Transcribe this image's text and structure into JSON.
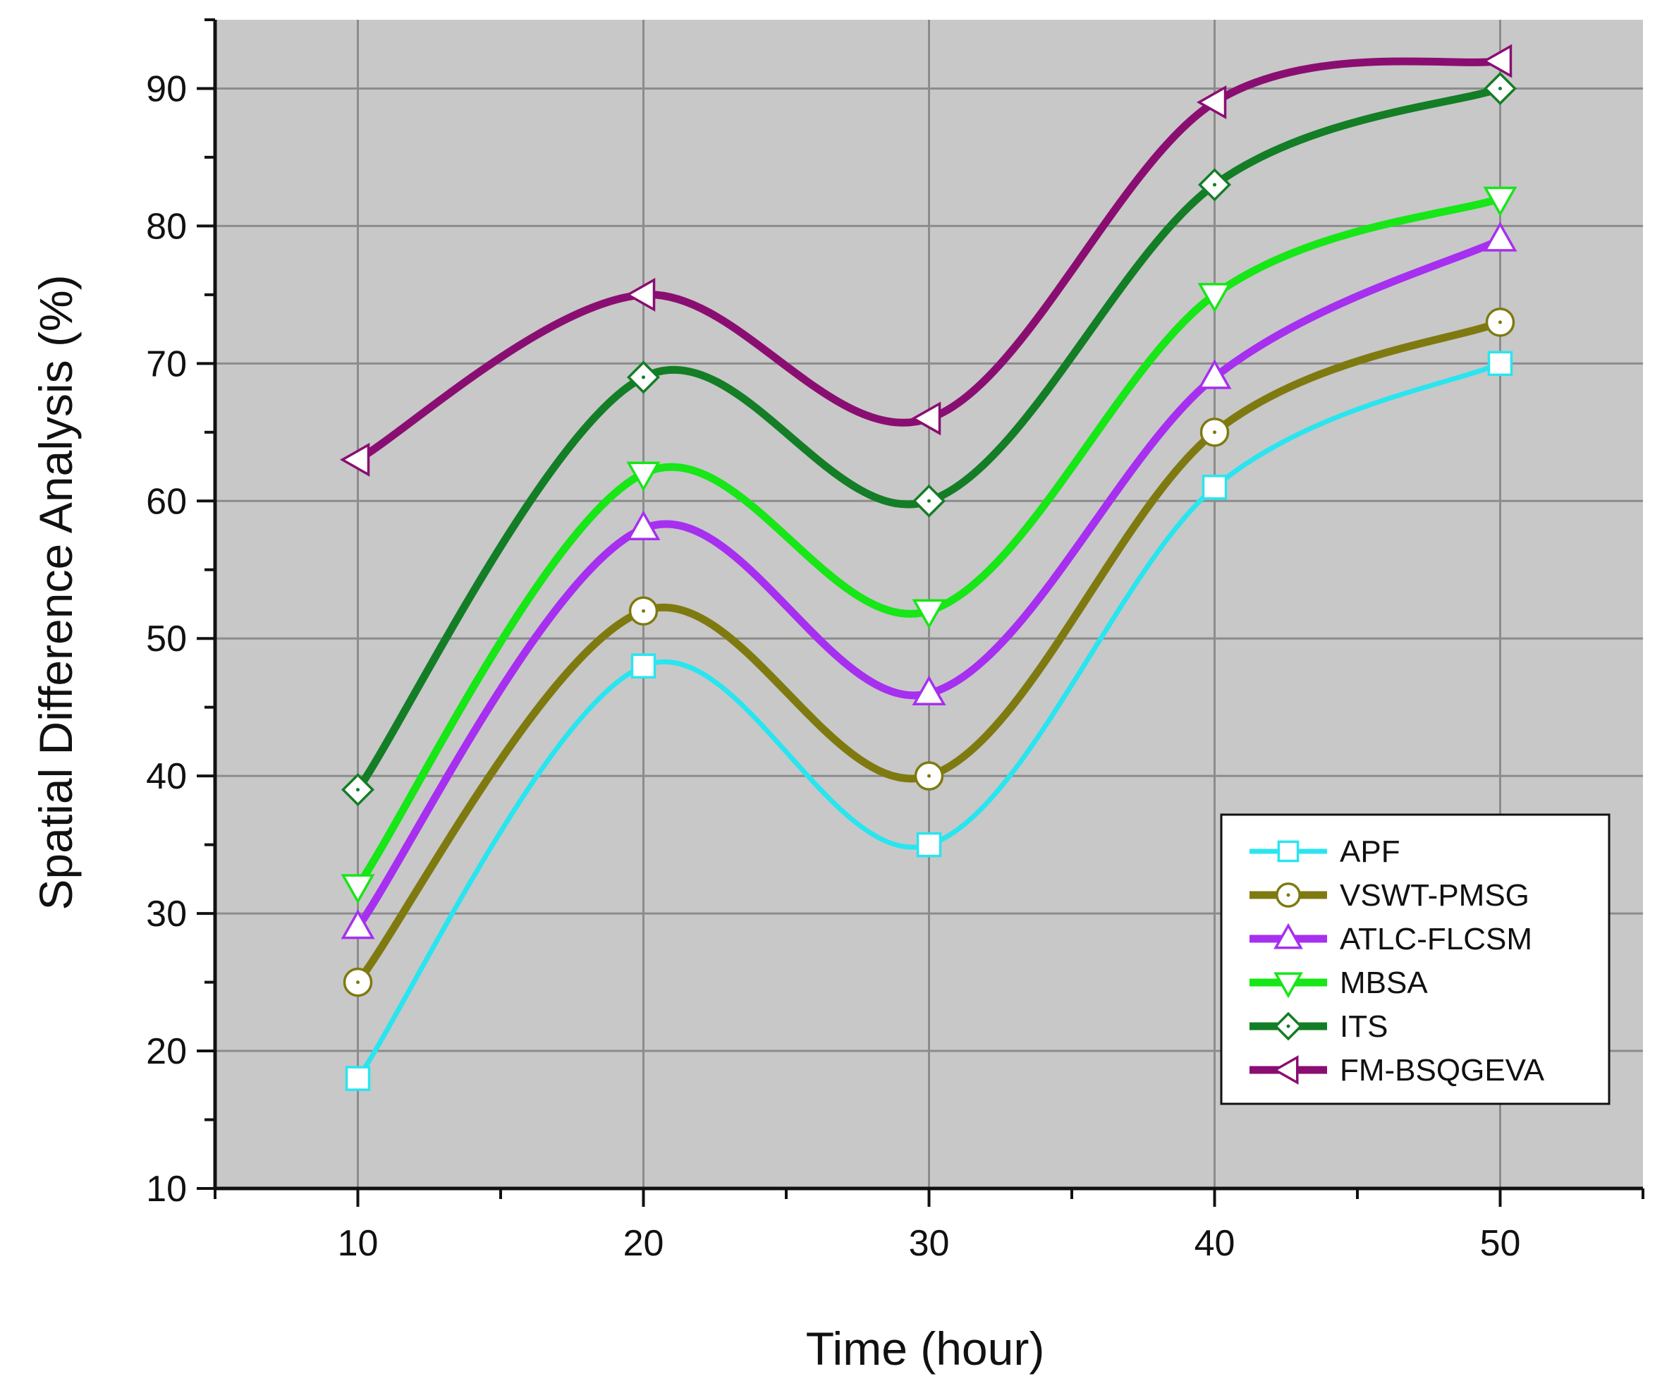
{
  "chart_data": {
    "type": "line",
    "title": "",
    "xlabel": "Time (hour)",
    "ylabel": "Spatial Difference Analysis (%)",
    "xlim": [
      5,
      55
    ],
    "ylim": [
      10,
      95
    ],
    "x_ticks": [
      10,
      20,
      30,
      40,
      50
    ],
    "y_ticks": [
      10,
      20,
      30,
      40,
      50,
      60,
      70,
      80,
      90
    ],
    "grid": true,
    "legend_position": "bottom-right",
    "x": [
      10,
      20,
      30,
      40,
      50
    ],
    "series": [
      {
        "name": "APF",
        "color": "#29e5ef",
        "marker": "square",
        "values": [
          18,
          48,
          35,
          61,
          70
        ]
      },
      {
        "name": "VSWT-PMSG",
        "color": "#7f7a10",
        "marker": "circle",
        "values": [
          25,
          52,
          40,
          65,
          73
        ]
      },
      {
        "name": "ATLC-FLCSM",
        "color": "#a72ff0",
        "marker": "triangle-up",
        "values": [
          29,
          58,
          46,
          69,
          79
        ]
      },
      {
        "name": "MBSA",
        "color": "#17e617",
        "marker": "triangle-down",
        "values": [
          32,
          62,
          52,
          75,
          82
        ]
      },
      {
        "name": "ITS",
        "color": "#137e25",
        "marker": "diamond",
        "values": [
          39,
          69,
          60,
          83,
          90
        ]
      },
      {
        "name": "FM-BSQGEVA",
        "color": "#8a0e72",
        "marker": "triangle-left",
        "values": [
          63,
          75,
          66,
          89,
          92
        ]
      }
    ]
  }
}
